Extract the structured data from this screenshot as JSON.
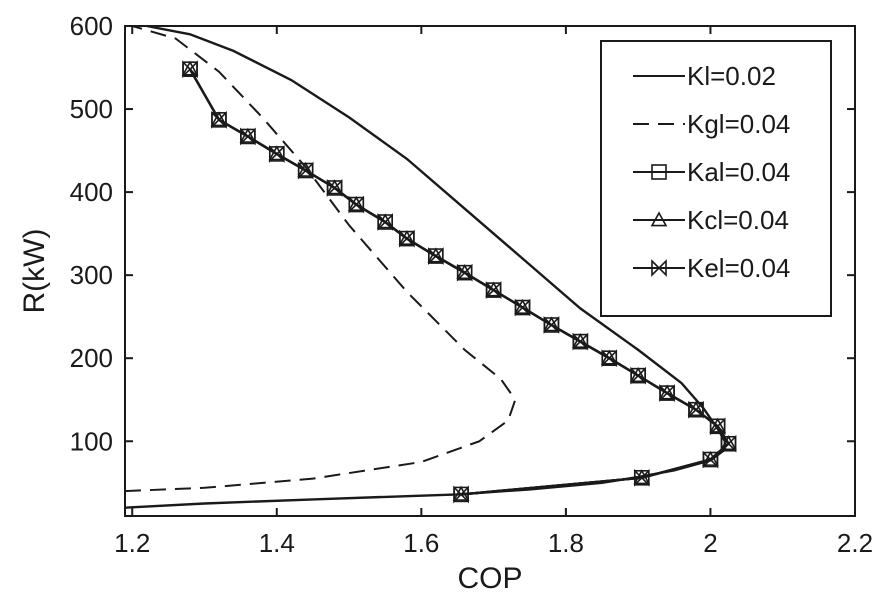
{
  "chart_data": {
    "type": "line",
    "xlabel": "COP",
    "ylabel": "R(kW)",
    "xlim": [
      1.19,
      2.2
    ],
    "ylim": [
      10,
      600
    ],
    "xticks": [
      1.2,
      1.4,
      1.6,
      1.8,
      2,
      2.2
    ],
    "yticks": [
      100,
      200,
      300,
      400,
      500,
      600
    ],
    "legend_position": "top-right",
    "series": [
      {
        "name": "Kl=0.02",
        "style": "solid",
        "marker": "none",
        "x": [
          1.19,
          1.3,
          1.45,
          1.55,
          1.65,
          1.75,
          1.85,
          1.9,
          1.95,
          2.0,
          2.02,
          2.02,
          2.01,
          1.99,
          1.96,
          1.9,
          1.82,
          1.74,
          1.66,
          1.58,
          1.5,
          1.42,
          1.34,
          1.28,
          1.22
        ],
        "y": [
          20,
          25,
          30,
          33,
          36,
          42,
          50,
          57,
          65,
          77,
          90,
          100,
          115,
          140,
          170,
          210,
          260,
          320,
          380,
          440,
          490,
          535,
          570,
          590,
          600
        ]
      },
      {
        "name": "Kgl=0.04",
        "style": "dashed",
        "marker": "none",
        "x": [
          1.19,
          1.3,
          1.45,
          1.6,
          1.68,
          1.72,
          1.73,
          1.71,
          1.66,
          1.58,
          1.5,
          1.44,
          1.38,
          1.32,
          1.26,
          1.2
        ],
        "y": [
          40,
          44,
          55,
          75,
          100,
          125,
          150,
          175,
          210,
          280,
          360,
          430,
          490,
          545,
          585,
          600
        ]
      },
      {
        "name": "Kal=0.04",
        "style": "solid",
        "marker": "square",
        "x": [
          1.655,
          1.905,
          2.0,
          2.025,
          2.01,
          1.98,
          1.94,
          1.9,
          1.86,
          1.82,
          1.78,
          1.74,
          1.7,
          1.66,
          1.62,
          1.58,
          1.55,
          1.51,
          1.48,
          1.44,
          1.4,
          1.36,
          1.32,
          1.28
        ],
        "y": [
          36,
          56,
          78,
          97,
          118,
          138,
          158,
          179,
          200,
          220,
          240,
          261,
          282,
          303,
          323,
          344,
          364,
          385,
          405,
          426,
          446,
          467,
          487,
          548
        ]
      },
      {
        "name": "Kcl=0.04",
        "style": "solid",
        "marker": "triangle",
        "x": [
          1.655,
          1.905,
          2.0,
          2.025,
          2.01,
          1.98,
          1.94,
          1.9,
          1.86,
          1.82,
          1.78,
          1.74,
          1.7,
          1.66,
          1.62,
          1.58,
          1.55,
          1.51,
          1.48,
          1.44,
          1.4,
          1.36,
          1.32,
          1.28
        ],
        "y": [
          36,
          56,
          78,
          97,
          118,
          138,
          158,
          179,
          200,
          220,
          240,
          261,
          282,
          303,
          323,
          344,
          364,
          385,
          405,
          426,
          446,
          467,
          487,
          548
        ]
      },
      {
        "name": "Kel=0.04",
        "style": "solid",
        "marker": "bowtie",
        "x": [
          1.655,
          1.905,
          2.0,
          2.025,
          2.01,
          1.98,
          1.94,
          1.9,
          1.86,
          1.82,
          1.78,
          1.74,
          1.7,
          1.66,
          1.62,
          1.58,
          1.55,
          1.51,
          1.48,
          1.44,
          1.4,
          1.36,
          1.32,
          1.28
        ],
        "y": [
          36,
          56,
          78,
          97,
          118,
          138,
          158,
          179,
          200,
          220,
          240,
          261,
          282,
          303,
          323,
          344,
          364,
          385,
          405,
          426,
          446,
          467,
          487,
          548
        ]
      }
    ]
  }
}
